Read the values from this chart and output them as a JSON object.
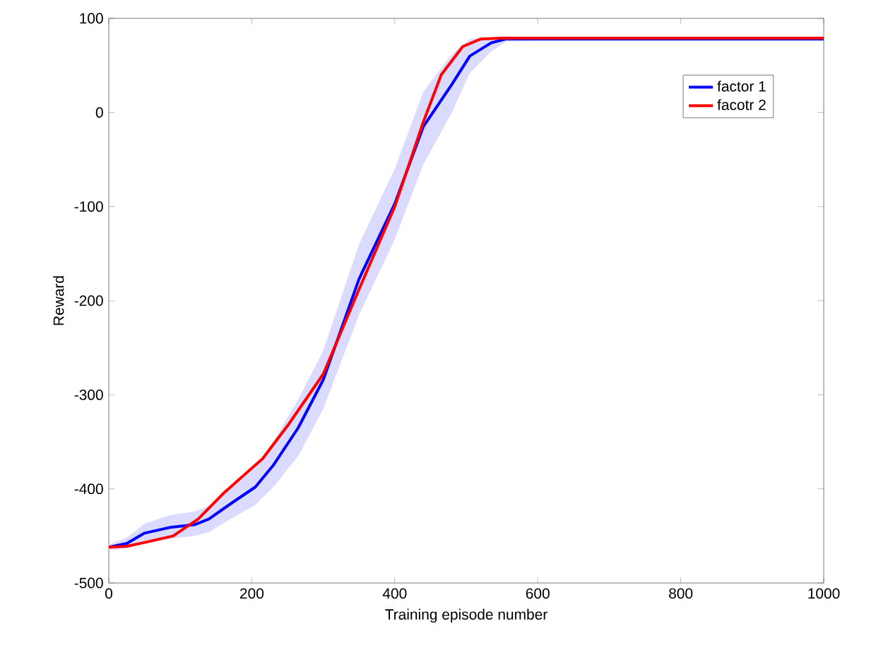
{
  "chart_data": {
    "type": "line",
    "xlabel": "Training episode number",
    "ylabel": "Reward",
    "xlim": [
      0,
      1000
    ],
    "ylim": [
      -500,
      100
    ],
    "xticks": [
      0,
      200,
      400,
      600,
      800,
      1000
    ],
    "yticks": [
      -500,
      -400,
      -300,
      -200,
      -100,
      0,
      100
    ],
    "grid": false,
    "legend": "top right",
    "marker": "none",
    "line_style": "solid",
    "series": [
      {
        "name": "factor 1",
        "color": "#0000ff",
        "x": [
          0,
          25,
          50,
          85,
          120,
          140,
          170,
          205,
          230,
          265,
          300,
          350,
          400,
          440,
          480,
          505,
          535,
          555,
          600,
          700,
          800,
          900,
          1000
        ],
        "values": [
          -462,
          -458,
          -447,
          -441,
          -438,
          -432,
          -416,
          -398,
          -375,
          -335,
          -284,
          -177,
          -97,
          -15,
          30,
          60,
          74,
          78,
          78,
          78,
          78,
          78,
          78
        ],
        "lower": [
          -465,
          -463,
          -457,
          -453,
          -450,
          -446,
          -432,
          -417,
          -398,
          -365,
          -315,
          -215,
          -135,
          -55,
          0,
          42,
          65,
          75,
          76,
          76,
          76,
          76,
          76
        ],
        "upper": [
          -459,
          -452,
          -437,
          -428,
          -424,
          -418,
          -400,
          -378,
          -350,
          -305,
          -253,
          -140,
          -60,
          22,
          62,
          78,
          80,
          80,
          80,
          80,
          80,
          80,
          80
        ]
      },
      {
        "name": "facotr 2",
        "color": "#ff0000",
        "x": [
          0,
          25,
          50,
          90,
          125,
          160,
          215,
          250,
          300,
          350,
          400,
          440,
          465,
          495,
          520,
          550,
          600,
          700,
          800,
          900,
          1000
        ],
        "values": [
          -462,
          -461,
          -457,
          -450,
          -432,
          -405,
          -368,
          -333,
          -278,
          -188,
          -100,
          -10,
          40,
          70,
          78,
          79,
          79,
          79,
          79,
          79,
          79
        ]
      }
    ]
  }
}
